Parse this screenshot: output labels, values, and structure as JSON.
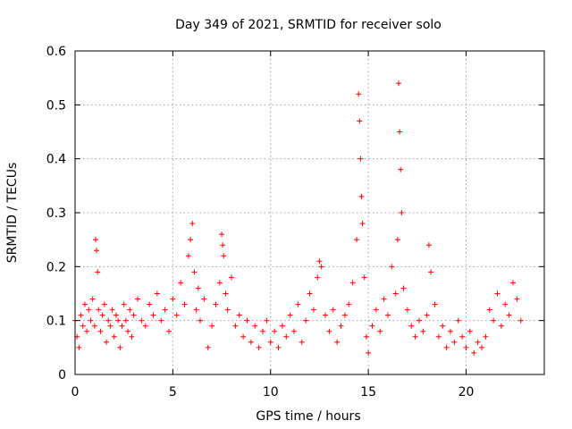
{
  "chart_data": {
    "type": "scatter",
    "title": "Day 349 of 2021, SRMTID for receiver solo",
    "xlabel": "GPS time / hours",
    "ylabel": "SRMTID / TECUs",
    "xlim": [
      0,
      24
    ],
    "ylim": [
      0,
      0.6
    ],
    "xticks": [
      0,
      5,
      10,
      15,
      20
    ],
    "xtick_labels": [
      "0",
      "5",
      "10",
      "15",
      "20"
    ],
    "yticks": [
      0,
      0.1,
      0.2,
      0.3,
      0.4,
      0.5,
      0.6
    ],
    "ytick_labels": [
      "0",
      "0.1",
      "0.2",
      "0.3",
      "0.4",
      "0.5",
      "0.6"
    ],
    "grid": true,
    "marker": "+",
    "color": "#ff0000",
    "series": [
      {
        "name": "SRMTID",
        "x": [
          0.0,
          0.1,
          0.2,
          0.3,
          0.4,
          0.5,
          0.6,
          0.7,
          0.8,
          0.9,
          1.0,
          1.05,
          1.1,
          1.15,
          1.2,
          1.3,
          1.4,
          1.5,
          1.6,
          1.7,
          1.8,
          1.9,
          2.0,
          2.1,
          2.2,
          2.3,
          2.4,
          2.5,
          2.6,
          2.7,
          2.8,
          2.9,
          3.0,
          3.2,
          3.4,
          3.6,
          3.8,
          4.0,
          4.2,
          4.4,
          4.6,
          4.8,
          5.0,
          5.2,
          5.4,
          5.6,
          5.8,
          5.9,
          6.0,
          6.1,
          6.2,
          6.3,
          6.4,
          6.6,
          6.8,
          7.0,
          7.2,
          7.4,
          7.5,
          7.55,
          7.6,
          7.7,
          7.8,
          8.0,
          8.2,
          8.4,
          8.6,
          8.8,
          9.0,
          9.2,
          9.4,
          9.6,
          9.8,
          10.0,
          10.2,
          10.4,
          10.6,
          10.8,
          11.0,
          11.2,
          11.4,
          11.6,
          11.8,
          12.0,
          12.2,
          12.4,
          12.5,
          12.6,
          12.8,
          13.0,
          13.2,
          13.4,
          13.6,
          13.8,
          14.0,
          14.2,
          14.4,
          14.5,
          14.55,
          14.6,
          14.65,
          14.7,
          14.8,
          14.9,
          15.0,
          15.2,
          15.4,
          15.6,
          15.8,
          16.0,
          16.2,
          16.4,
          16.5,
          16.55,
          16.6,
          16.65,
          16.7,
          16.8,
          17.0,
          17.2,
          17.4,
          17.6,
          17.8,
          18.0,
          18.1,
          18.2,
          18.4,
          18.6,
          18.8,
          19.0,
          19.2,
          19.4,
          19.6,
          19.8,
          20.0,
          20.2,
          20.4,
          20.6,
          20.8,
          21.0,
          21.2,
          21.4,
          21.6,
          21.8,
          22.0,
          22.2,
          22.4,
          22.6,
          22.8
        ],
        "y": [
          0.1,
          0.07,
          0.05,
          0.11,
          0.09,
          0.13,
          0.08,
          0.12,
          0.1,
          0.14,
          0.09,
          0.25,
          0.23,
          0.19,
          0.12,
          0.08,
          0.11,
          0.13,
          0.06,
          0.1,
          0.09,
          0.12,
          0.07,
          0.11,
          0.1,
          0.05,
          0.09,
          0.13,
          0.1,
          0.08,
          0.12,
          0.07,
          0.11,
          0.14,
          0.1,
          0.09,
          0.13,
          0.11,
          0.15,
          0.1,
          0.12,
          0.08,
          0.14,
          0.11,
          0.17,
          0.13,
          0.22,
          0.25,
          0.28,
          0.19,
          0.12,
          0.16,
          0.1,
          0.14,
          0.05,
          0.09,
          0.13,
          0.17,
          0.26,
          0.24,
          0.22,
          0.15,
          0.12,
          0.18,
          0.09,
          0.11,
          0.07,
          0.1,
          0.06,
          0.09,
          0.05,
          0.08,
          0.1,
          0.06,
          0.08,
          0.05,
          0.09,
          0.07,
          0.11,
          0.08,
          0.13,
          0.06,
          0.1,
          0.15,
          0.12,
          0.18,
          0.21,
          0.2,
          0.11,
          0.08,
          0.12,
          0.06,
          0.09,
          0.11,
          0.13,
          0.17,
          0.25,
          0.52,
          0.47,
          0.4,
          0.33,
          0.28,
          0.18,
          0.07,
          0.04,
          0.09,
          0.12,
          0.08,
          0.14,
          0.11,
          0.2,
          0.15,
          0.25,
          0.54,
          0.45,
          0.38,
          0.3,
          0.16,
          0.12,
          0.09,
          0.07,
          0.1,
          0.08,
          0.11,
          0.24,
          0.19,
          0.13,
          0.07,
          0.09,
          0.05,
          0.08,
          0.06,
          0.1,
          0.07,
          0.05,
          0.08,
          0.04,
          0.06,
          0.05,
          0.07,
          0.12,
          0.1,
          0.15,
          0.09,
          0.13,
          0.11,
          0.17,
          0.14,
          0.1
        ]
      }
    ]
  }
}
